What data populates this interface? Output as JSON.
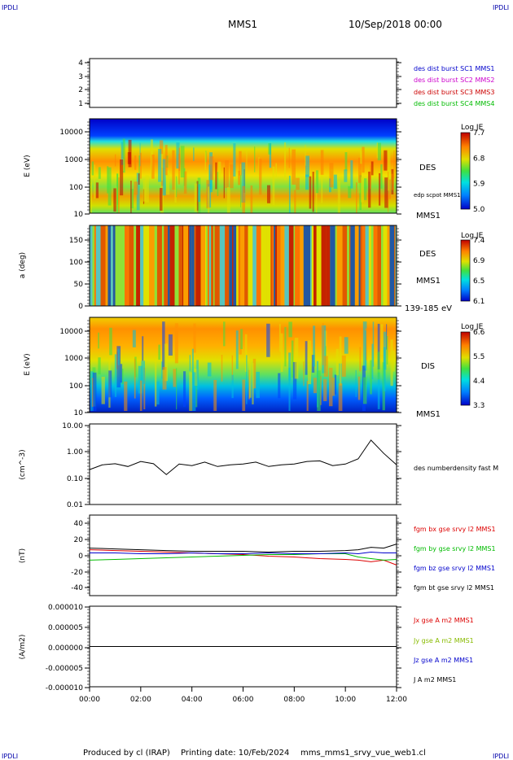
{
  "header": {
    "corner_left": "IPDLI",
    "corner_right": "IPDLI",
    "mission": "MMS1",
    "datetime": "10/Sep/2018 00:00"
  },
  "footer": {
    "credit": "Produced by cl (IRAP)",
    "printing": "Printing date: 10/Feb/2024",
    "file": "mms_mms1_srvy_vue_web1.cl",
    "corner_left": "IPDLI",
    "corner_right": "IPDLI"
  },
  "chart_data": [
    {
      "type": "line",
      "panel": "spacecraft",
      "y_ticks": [
        "4",
        "3",
        "2",
        "1"
      ],
      "legend": [
        {
          "label": "des dist burst SC1 MMS1",
          "color": "#0000cc"
        },
        {
          "label": "des dist burst SC2 MMS2",
          "color": "#cc00cc"
        },
        {
          "label": "des dist burst SC3 MMS3",
          "color": "#cc0000"
        },
        {
          "label": "des dist burst SC4 MMS4",
          "color": "#00bb00"
        }
      ]
    },
    {
      "type": "heatmap",
      "panel": "des-energy",
      "ylabel": "E (eV)",
      "y_ticks": [
        "10000",
        "1000",
        "100",
        "10"
      ],
      "ylog": true,
      "right_labels": [
        "DES",
        "edp scpot MMS1",
        "MMS1"
      ],
      "colorbar": {
        "title": "Log JE",
        "ticks": [
          "7.7",
          "6.8",
          "5.9",
          "5.0"
        ]
      }
    },
    {
      "type": "heatmap",
      "panel": "des-pitch",
      "ylabel": "a (deg)",
      "y_ticks": [
        "150",
        "100",
        "50",
        "0"
      ],
      "right_labels": [
        "DES",
        "MMS1",
        "139-185 eV"
      ],
      "colorbar": {
        "title": "Log JE",
        "ticks": [
          "7.4",
          "6.9",
          "6.5",
          "6.1"
        ]
      }
    },
    {
      "type": "heatmap",
      "panel": "dis-energy",
      "ylabel": "E (eV)",
      "y_ticks": [
        "10000",
        "1000",
        "100",
        "10"
      ],
      "ylog": true,
      "right_labels": [
        "DIS",
        "MMS1"
      ],
      "colorbar": {
        "title": "Log JE",
        "ticks": [
          "6.6",
          "5.5",
          "4.4",
          "3.3"
        ]
      }
    },
    {
      "type": "line",
      "panel": "density",
      "ylabel": "(cm^-3)",
      "y_ticks": [
        "10.00",
        "1.00",
        "0.10",
        "0.01"
      ],
      "ylog": true,
      "ylim": [
        0.01,
        10
      ],
      "x": [
        0,
        0.5,
        1,
        1.5,
        2,
        2.5,
        3,
        3.5,
        4,
        4.5,
        5,
        5.5,
        6,
        6.5,
        7,
        7.5,
        8,
        8.5,
        9,
        9.5,
        10,
        10.5,
        11,
        11.5,
        12
      ],
      "series": [
        {
          "name": "des numberdensity fast M",
          "color": "#000000",
          "values": [
            0.2,
            0.3,
            0.33,
            0.26,
            0.4,
            0.33,
            0.13,
            0.32,
            0.28,
            0.38,
            0.26,
            0.3,
            0.32,
            0.38,
            0.26,
            0.3,
            0.32,
            0.4,
            0.42,
            0.28,
            0.32,
            0.5,
            2.5,
            0.8,
            0.3
          ]
        }
      ]
    },
    {
      "type": "line",
      "panel": "magnetic-field",
      "ylabel": "(nT)",
      "y_ticks": [
        "40",
        "20",
        "0",
        "-20",
        "-40"
      ],
      "ylim": [
        -50,
        50
      ],
      "x": [
        0,
        1,
        2,
        3,
        4,
        5,
        6,
        7,
        8,
        9,
        10,
        10.5,
        11,
        11.5,
        12
      ],
      "series": [
        {
          "name": "fgm bx gse srvy l2 MMS1",
          "color": "#dd0000",
          "values": [
            7,
            6,
            5,
            4,
            3,
            2,
            1,
            -1,
            -2,
            -4,
            -5,
            -6,
            -8,
            -6,
            -12
          ]
        },
        {
          "name": "fgm by gse srvy l2 MMS1",
          "color": "#00bb00",
          "values": [
            -6,
            -5,
            -4,
            -3,
            -2,
            -1,
            0,
            1,
            1,
            2,
            2,
            -2,
            -4,
            -6,
            -5
          ]
        },
        {
          "name": "fgm bz gse srvy l2 MMS1",
          "color": "#0000cc",
          "values": [
            3,
            3,
            2,
            2,
            3,
            2,
            2,
            3,
            2,
            2,
            3,
            2,
            4,
            3,
            3
          ]
        },
        {
          "name": "fgm bt gse srvy l2 MMS1",
          "color": "#000000",
          "values": [
            9,
            8,
            7,
            6,
            5,
            5,
            5,
            4,
            5,
            5,
            6,
            7,
            10,
            9,
            14
          ]
        }
      ]
    },
    {
      "type": "line",
      "panel": "current-density",
      "ylabel": "(A/m2)",
      "y_ticks": [
        "0.000010",
        "0.000005",
        "0.000000",
        "-0.000005",
        "-0.000010"
      ],
      "ylim": [
        -1e-05,
        1e-05
      ],
      "x": [
        0,
        12
      ],
      "series": [
        {
          "name": "Jx gse A m2 MMS1",
          "color": "#dd0000",
          "values": [
            0,
            0
          ]
        },
        {
          "name": "Jy gse A m2 MMS1",
          "color": "#88bb00",
          "values": [
            0,
            0
          ]
        },
        {
          "name": "Jz gse A m2 MMS1",
          "color": "#0000cc",
          "values": [
            0,
            0
          ]
        },
        {
          "name": "J A m2 MMS1",
          "color": "#000000",
          "values": [
            0,
            0
          ]
        }
      ]
    }
  ],
  "time_axis": {
    "ticks": [
      "00:00",
      "02:00",
      "04:00",
      "06:00",
      "08:00",
      "10:00",
      "12:00"
    ],
    "range_hours": [
      0,
      12
    ]
  }
}
